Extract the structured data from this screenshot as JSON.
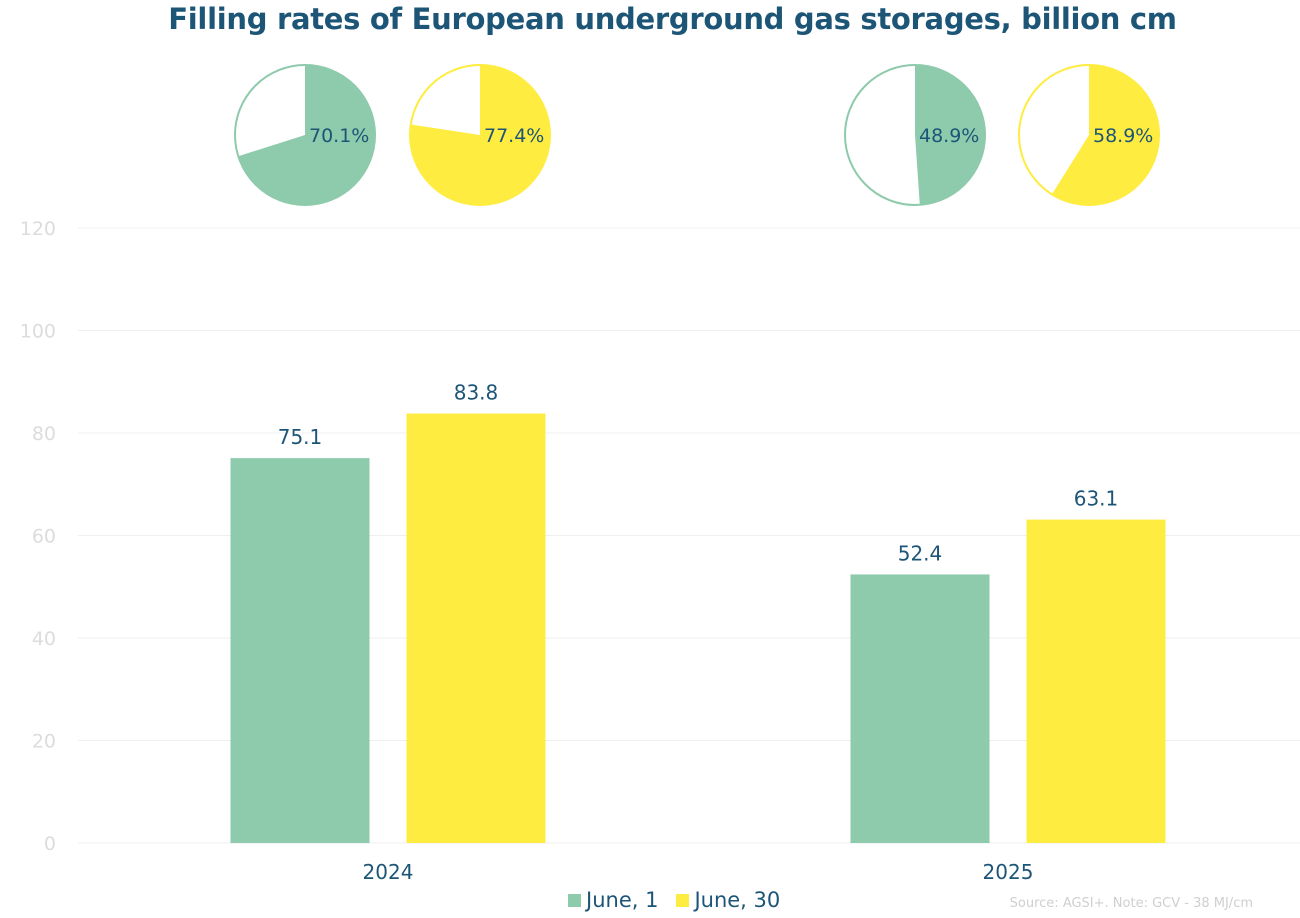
{
  "chart_data": {
    "type": "bar",
    "title": "Filling rates of European underground gas storages, billion cm",
    "categories": [
      "2024",
      "2025"
    ],
    "series": [
      {
        "name": "June, 1",
        "color": "#8ecaac",
        "values": [
          75.1,
          52.4
        ],
        "labels": [
          "75.1",
          "52.4"
        ]
      },
      {
        "name": "June, 30",
        "color": "#ffec40",
        "values": [
          83.8,
          63.1
        ],
        "labels": [
          "83.8",
          "63.1"
        ]
      }
    ],
    "ylim": [
      0,
      120
    ],
    "yticks": [
      "0",
      "20",
      "40",
      "60",
      "80",
      "100",
      "120"
    ],
    "grid": true,
    "legend": "bottom",
    "pies": [
      {
        "category": "2024",
        "series": "June, 1",
        "value": 70.1,
        "label": "70.1%"
      },
      {
        "category": "2024",
        "series": "June, 30",
        "value": 77.4,
        "label": "77.4%"
      },
      {
        "category": "2025",
        "series": "June, 1",
        "value": 48.9,
        "label": "48.9%"
      },
      {
        "category": "2025",
        "series": "June, 30",
        "value": 58.9,
        "label": "58.9%"
      }
    ],
    "source": "Source: AGSI+. Note: GCV - 38 MJ/cm"
  }
}
